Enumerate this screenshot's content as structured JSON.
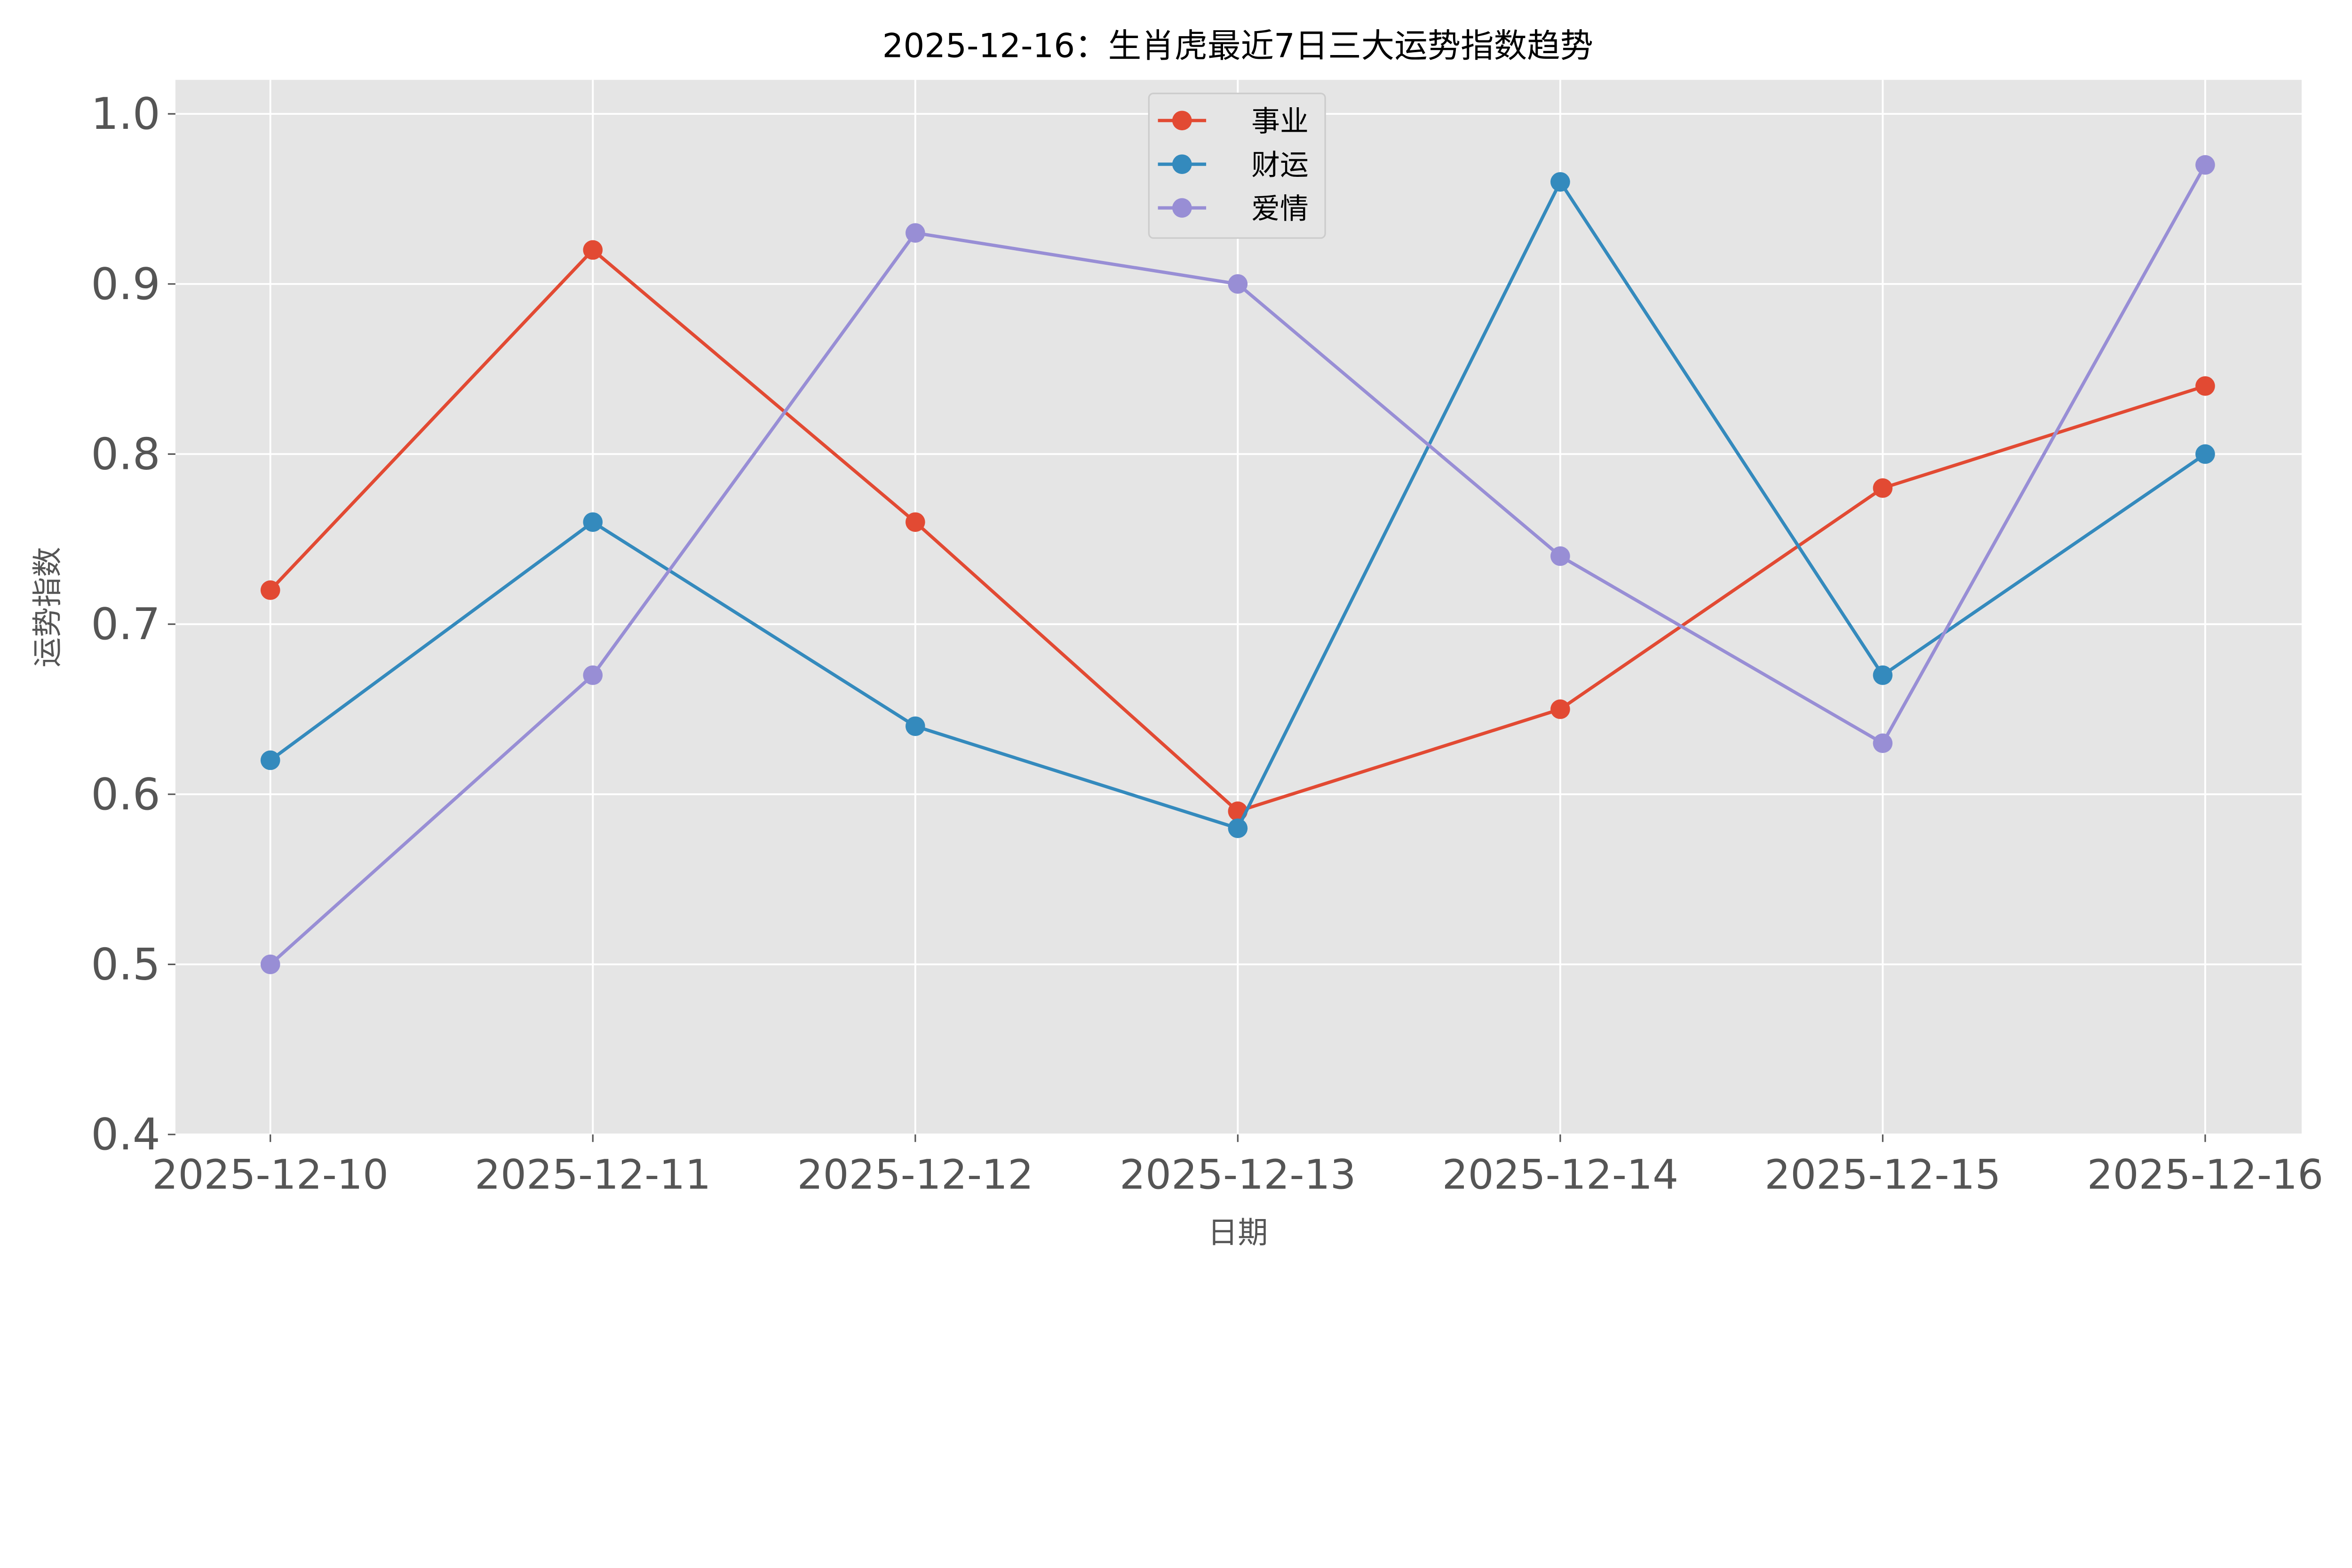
{
  "chart_data": {
    "type": "line",
    "title": "2025-12-16：生肖虎最近7日三大运势指数趋势",
    "xlabel": "日期",
    "ylabel": "运势指数",
    "categories": [
      "2025-12-10",
      "2025-12-11",
      "2025-12-12",
      "2025-12-13",
      "2025-12-14",
      "2025-12-15",
      "2025-12-16"
    ],
    "ylim": [
      0.4,
      1.02
    ],
    "yticks": [
      "0.4",
      "0.5",
      "0.6",
      "0.7",
      "0.8",
      "0.9",
      "1.0"
    ],
    "grid": true,
    "legend_position": "top-center",
    "background": "#e5e5e5",
    "series": [
      {
        "name": "事业",
        "color": "#e24a33",
        "values": [
          0.72,
          0.92,
          0.76,
          0.59,
          0.65,
          0.78,
          0.84
        ]
      },
      {
        "name": "财运",
        "color": "#348abd",
        "values": [
          0.62,
          0.76,
          0.64,
          0.58,
          0.96,
          0.67,
          0.8
        ]
      },
      {
        "name": "爱情",
        "color": "#988ed5",
        "values": [
          0.5,
          0.67,
          0.93,
          0.9,
          0.74,
          0.63,
          0.97
        ]
      }
    ]
  }
}
